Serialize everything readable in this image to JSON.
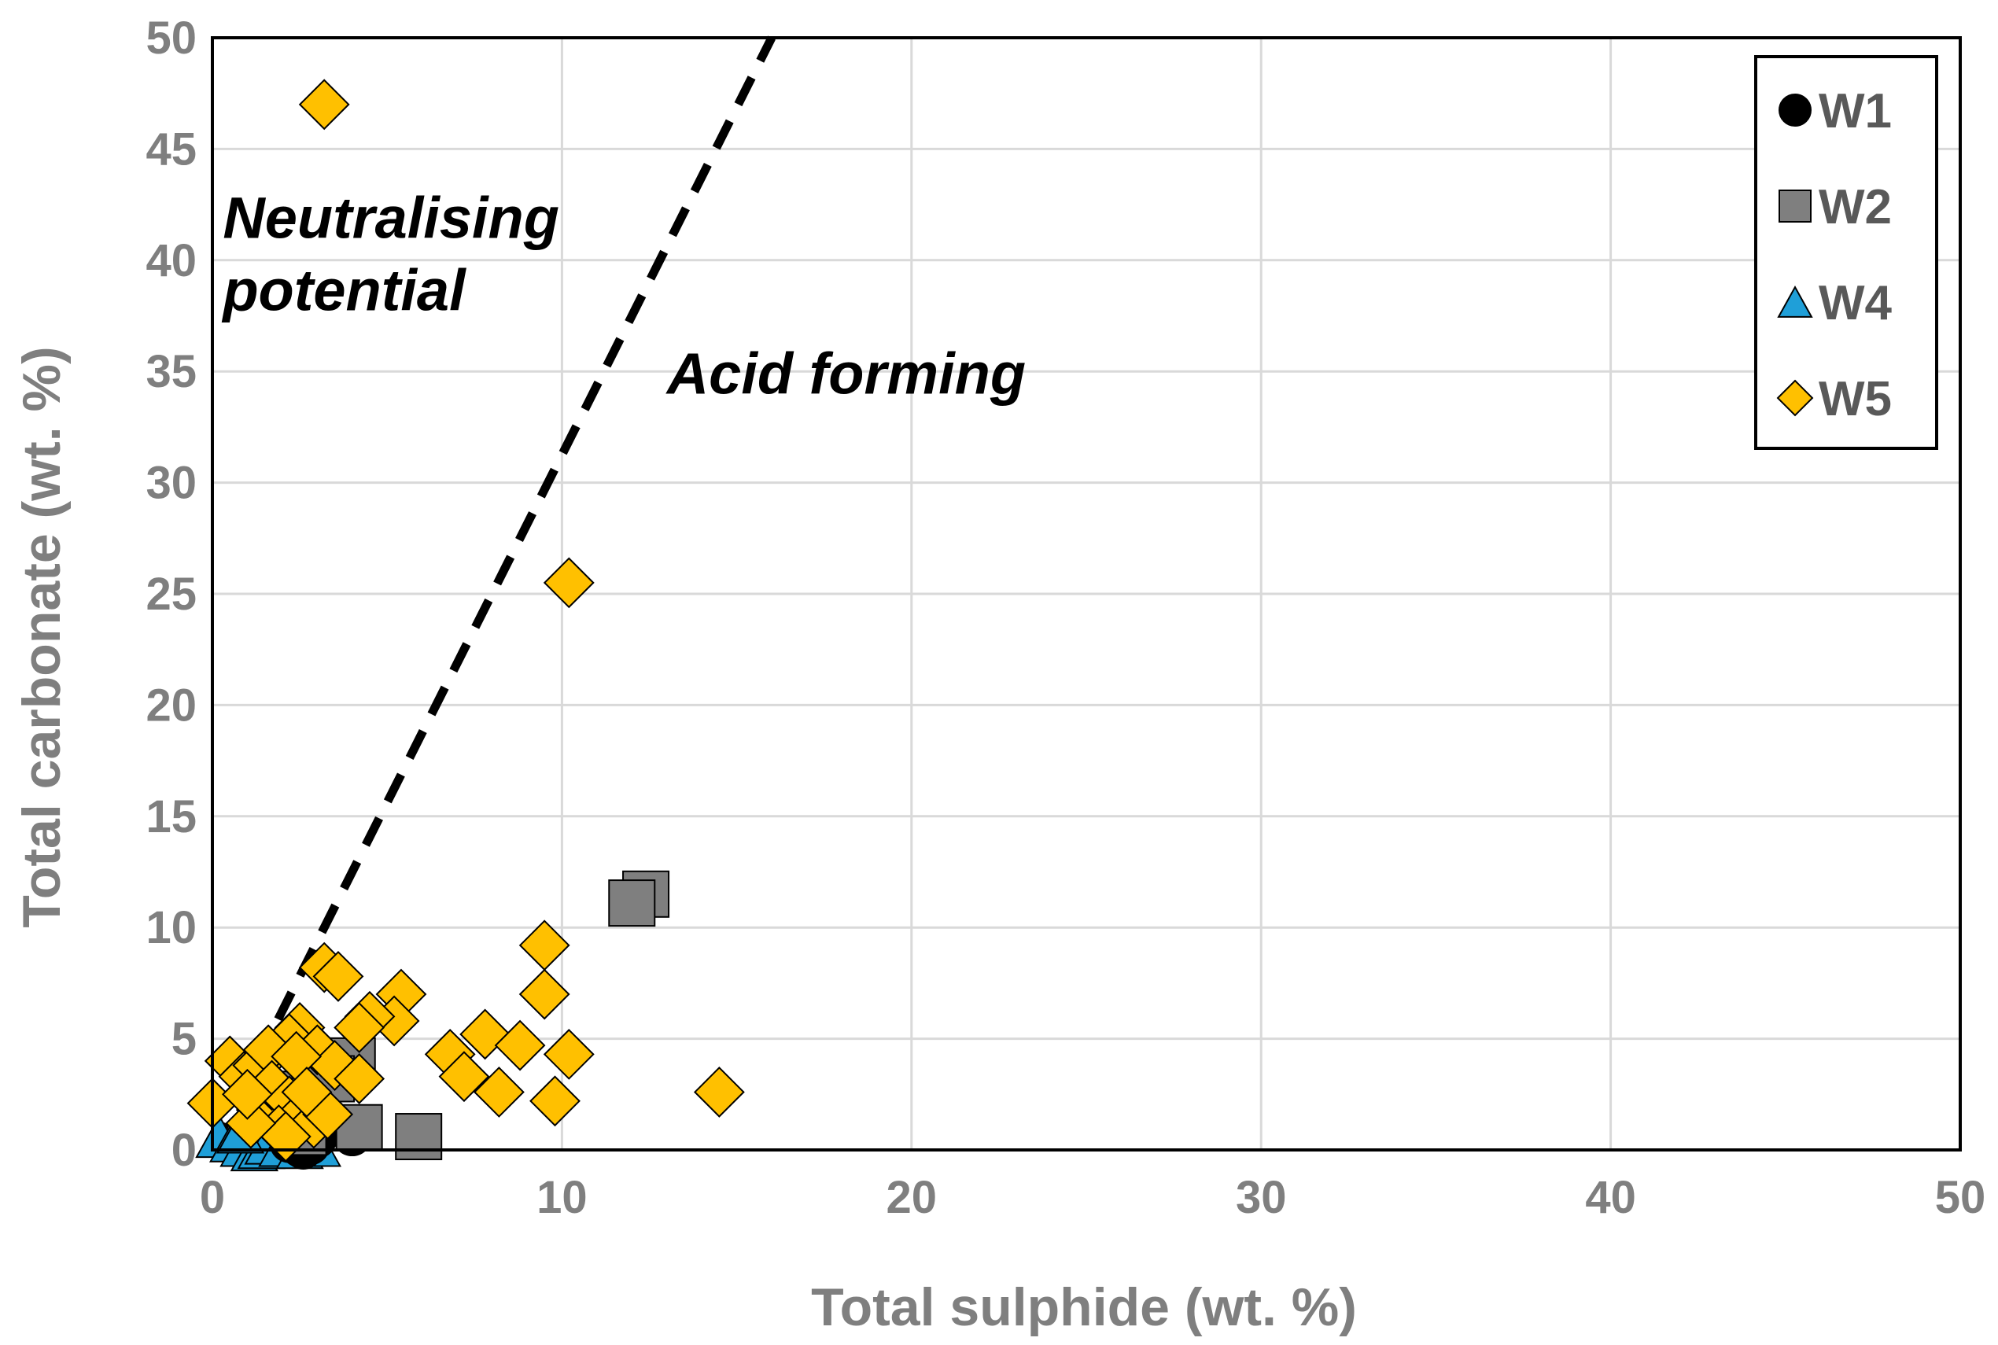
{
  "chart_data": {
    "type": "scatter",
    "title": "",
    "xlabel": "Total sulphide (wt. %)",
    "ylabel": "Total carbonate (wt. %)",
    "xlim": [
      0,
      50
    ],
    "ylim": [
      0,
      50
    ],
    "xticks": [
      0,
      10,
      20,
      30,
      40,
      50
    ],
    "yticks": [
      0,
      5,
      10,
      15,
      20,
      25,
      30,
      35,
      40,
      45,
      50
    ],
    "grid": true,
    "legend_position": "top-right",
    "reference_line": {
      "style": "dashed",
      "color": "#000000",
      "points": [
        [
          0,
          0
        ],
        [
          16,
          50
        ]
      ]
    },
    "annotations": [
      {
        "lines": [
          "Neutralising",
          "potential"
        ],
        "at": [
          0.3,
          41
        ]
      },
      {
        "lines": [
          "Acid forming"
        ],
        "at": [
          13,
          34
        ]
      }
    ],
    "series": [
      {
        "name": "W1",
        "marker": "circle",
        "color": "#000000",
        "points": [
          [
            2.2,
            0.3
          ],
          [
            2.5,
            0.1
          ],
          [
            2.8,
            0.2
          ],
          [
            3.0,
            0.5
          ],
          [
            4.0,
            0.6
          ],
          [
            2.6,
            0.0
          ]
        ]
      },
      {
        "name": "W2",
        "marker": "square",
        "color": "#7f7f7f",
        "points": [
          [
            12.4,
            11.5
          ],
          [
            12.0,
            11.1
          ],
          [
            5.9,
            0.6
          ],
          [
            4.2,
            1.0
          ],
          [
            4.0,
            4.0
          ],
          [
            2.3,
            2.5
          ],
          [
            2.8,
            2.2
          ],
          [
            3.4,
            3.2
          ],
          [
            1.8,
            1.6
          ],
          [
            2.6,
            0.8
          ]
        ]
      },
      {
        "name": "W4",
        "marker": "triangle",
        "color": "#1f9fd8",
        "points": [
          [
            0.2,
            0.6
          ],
          [
            0.6,
            0.4
          ],
          [
            0.9,
            0.2
          ],
          [
            1.2,
            0.0
          ],
          [
            1.4,
            0.1
          ],
          [
            1.6,
            0.3
          ],
          [
            0.8,
            0.8
          ],
          [
            2.0,
            0.2
          ],
          [
            2.5,
            0.1
          ],
          [
            3.0,
            0.2
          ]
        ]
      },
      {
        "name": "W5",
        "marker": "diamond",
        "color": "#ffc000",
        "points": [
          [
            3.2,
            47.0
          ],
          [
            10.2,
            25.5
          ],
          [
            9.5,
            9.2
          ],
          [
            9.5,
            7.0
          ],
          [
            3.2,
            8.2
          ],
          [
            3.6,
            7.8
          ],
          [
            5.4,
            7.0
          ],
          [
            5.2,
            5.8
          ],
          [
            4.5,
            6.0
          ],
          [
            4.2,
            5.5
          ],
          [
            2.5,
            5.5
          ],
          [
            2.2,
            5.0
          ],
          [
            3.0,
            4.5
          ],
          [
            3.5,
            3.8
          ],
          [
            4.2,
            3.2
          ],
          [
            6.8,
            4.3
          ],
          [
            7.2,
            3.3
          ],
          [
            7.8,
            5.2
          ],
          [
            8.2,
            2.6
          ],
          [
            8.8,
            4.7
          ],
          [
            10.2,
            4.3
          ],
          [
            9.8,
            2.2
          ],
          [
            14.5,
            2.6
          ],
          [
            0.5,
            4.0
          ],
          [
            0.0,
            2.1
          ],
          [
            0.9,
            3.3
          ],
          [
            1.3,
            3.8
          ],
          [
            1.6,
            4.5
          ],
          [
            1.4,
            1.8
          ],
          [
            1.7,
            2.9
          ],
          [
            2.2,
            2.2
          ],
          [
            2.6,
            1.7
          ],
          [
            2.9,
            1.2
          ],
          [
            1.9,
            0.9
          ],
          [
            2.1,
            0.6
          ],
          [
            1.1,
            1.2
          ],
          [
            2.4,
            4.2
          ],
          [
            3.3,
            1.6
          ],
          [
            2.7,
            2.6
          ],
          [
            1.0,
            2.5
          ]
        ]
      }
    ]
  }
}
